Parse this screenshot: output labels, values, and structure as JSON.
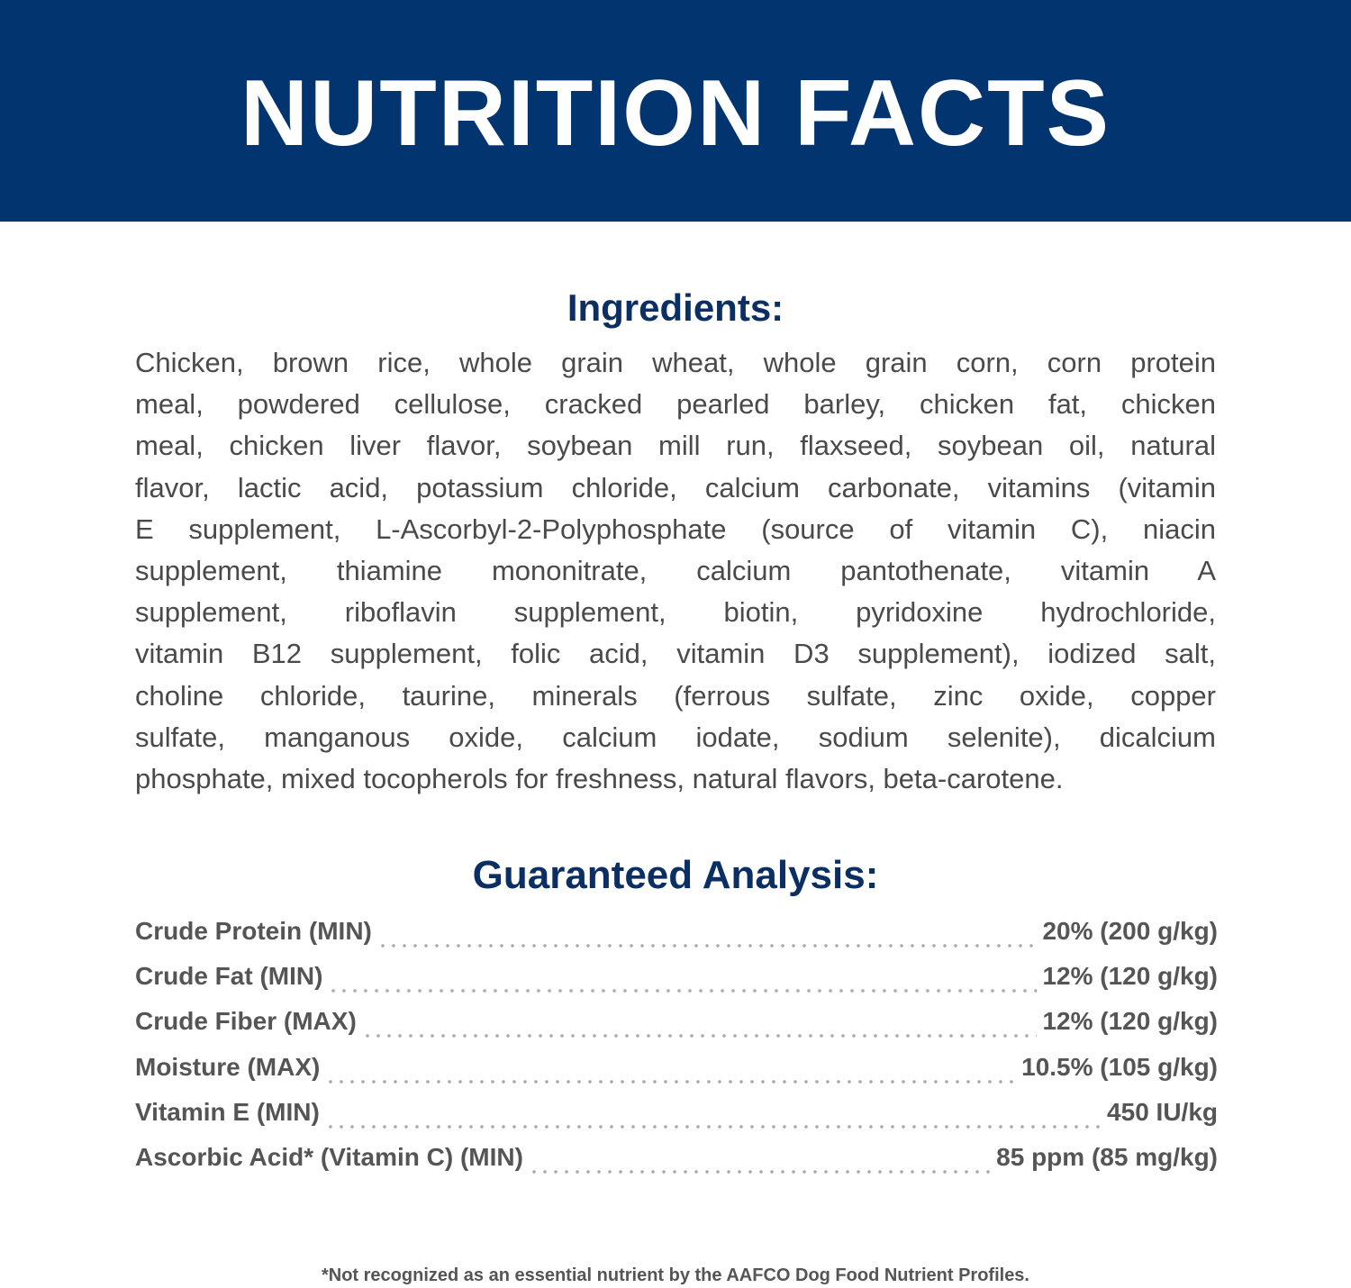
{
  "header": {
    "title": "NUTRITION FACTS"
  },
  "colors": {
    "banner": "#023570",
    "heading": "#0c2f63",
    "text": "#4a4a4a"
  },
  "ingredients": {
    "title": "Ingredients:",
    "lines": [
      "Chicken, brown rice, whole grain wheat, whole grain corn, corn protein",
      "meal, powdered cellulose, cracked pearled barley, chicken fat, chicken",
      "meal, chicken liver flavor, soybean mill run, flaxseed, soybean oil, natural",
      "flavor, lactic acid, potassium chloride, calcium carbonate, vitamins (vitamin",
      "E supplement, L-Ascorbyl-2-Polyphosphate (source of vitamin C), niacin",
      "supplement, thiamine mononitrate, calcium pantothenate, vitamin A",
      "supplement, riboflavin supplement, biotin, pyridoxine hydrochloride,",
      "vitamin B12 supplement, folic acid, vitamin D3 supplement), iodized salt,",
      "choline chloride, taurine, minerals (ferrous sulfate, zinc oxide, copper",
      "sulfate, manganous oxide, calcium iodate, sodium selenite), dicalcium",
      "phosphate, mixed tocopherols for freshness, natural flavors, beta-carotene."
    ]
  },
  "analysis": {
    "title": "Guaranteed Analysis:",
    "rows": [
      {
        "label": "Crude Protein (MIN)",
        "value": "20% (200 g/kg)"
      },
      {
        "label": "Crude Fat (MIN)",
        "value": "12% (120 g/kg)"
      },
      {
        "label": "Crude Fiber (MAX)",
        "value": "12% (120 g/kg)"
      },
      {
        "label": "Moisture (MAX)",
        "value": "10.5% (105 g/kg)"
      },
      {
        "label": "Vitamin E (MIN)",
        "value": "450 IU/kg"
      },
      {
        "label": "Ascorbic Acid* (Vitamin C) (MIN)",
        "value": "85 ppm (85 mg/kg)"
      }
    ]
  },
  "footnote": "*Not recognized as an essential nutrient by the AAFCO Dog Food Nutrient Profiles."
}
